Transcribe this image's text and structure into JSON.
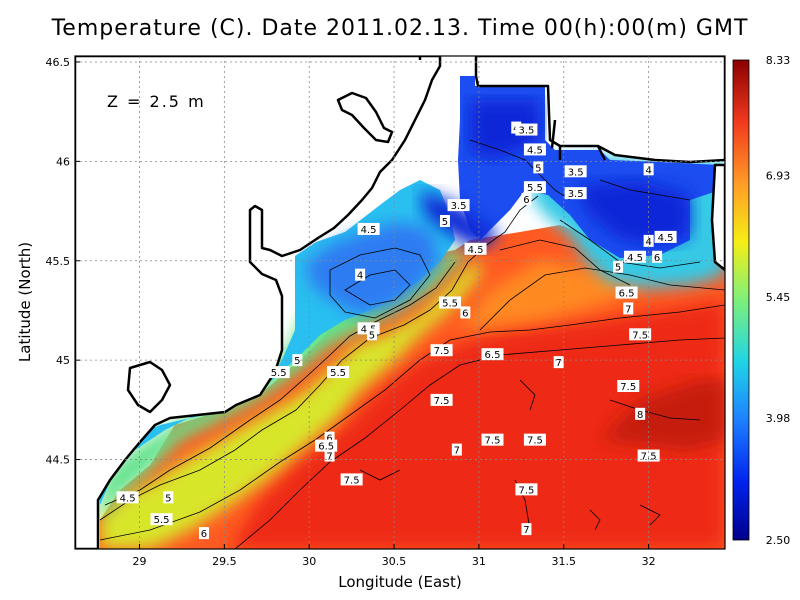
{
  "title": "Temperature (C). Date 2011.02.13. Time 00(h):00(m) GMT",
  "depth_label": "Z = 2.5 m",
  "x_axis": {
    "label": "Longitude (East)",
    "ticks": [
      "29",
      "29.5",
      "30",
      "30.5",
      "31",
      "31.5",
      "32"
    ]
  },
  "y_axis": {
    "label": "Latitude (North)",
    "ticks": [
      "46.5",
      "46",
      "45.5",
      "45",
      "44.5"
    ]
  },
  "colorbar": {
    "labels": [
      "8.33",
      "6.93",
      "5.45",
      "3.98",
      "2.50"
    ],
    "min": 2.5,
    "max": 8.33
  },
  "map_data": {
    "type": "heatmap",
    "lon_range": [
      28.62,
      32.45
    ],
    "lat_range": [
      44.05,
      46.53
    ],
    "contour_labels": [
      {
        "text": "4",
        "lon": 31.22,
        "lat": 46.17
      },
      {
        "text": "3.5",
        "lon": 31.28,
        "lat": 46.16
      },
      {
        "text": "4.5",
        "lon": 31.33,
        "lat": 46.06
      },
      {
        "text": "5",
        "lon": 31.35,
        "lat": 45.97
      },
      {
        "text": "3.5",
        "lon": 31.57,
        "lat": 45.95
      },
      {
        "text": "4",
        "lon": 32.0,
        "lat": 45.96
      },
      {
        "text": "5.5",
        "lon": 31.33,
        "lat": 45.87
      },
      {
        "text": "3.5",
        "lon": 31.57,
        "lat": 45.84
      },
      {
        "text": "6",
        "lon": 31.28,
        "lat": 45.81
      },
      {
        "text": "3.5",
        "lon": 30.88,
        "lat": 45.78
      },
      {
        "text": "5",
        "lon": 30.8,
        "lat": 45.7
      },
      {
        "text": "4.5",
        "lon": 30.35,
        "lat": 45.66
      },
      {
        "text": "4.5",
        "lon": 32.1,
        "lat": 45.62
      },
      {
        "text": "4",
        "lon": 32.0,
        "lat": 45.6
      },
      {
        "text": "4.5",
        "lon": 30.98,
        "lat": 45.56
      },
      {
        "text": "4.5",
        "lon": 31.92,
        "lat": 45.52
      },
      {
        "text": "6",
        "lon": 32.05,
        "lat": 45.52
      },
      {
        "text": "5",
        "lon": 31.82,
        "lat": 45.47
      },
      {
        "text": "4",
        "lon": 30.3,
        "lat": 45.43
      },
      {
        "text": "6.5",
        "lon": 31.87,
        "lat": 45.34
      },
      {
        "text": "5.5",
        "lon": 30.83,
        "lat": 45.29
      },
      {
        "text": "7",
        "lon": 31.88,
        "lat": 45.26
      },
      {
        "text": "6",
        "lon": 30.92,
        "lat": 45.24
      },
      {
        "text": "4.5",
        "lon": 30.35,
        "lat": 45.16
      },
      {
        "text": "5",
        "lon": 30.37,
        "lat": 45.13
      },
      {
        "text": "7.5",
        "lon": 31.95,
        "lat": 45.13
      },
      {
        "text": "7.5",
        "lon": 30.78,
        "lat": 45.05
      },
      {
        "text": "6.5",
        "lon": 31.08,
        "lat": 45.03
      },
      {
        "text": "5",
        "lon": 29.93,
        "lat": 45.0
      },
      {
        "text": "7",
        "lon": 31.47,
        "lat": 44.99
      },
      {
        "text": "5.5",
        "lon": 29.82,
        "lat": 44.94
      },
      {
        "text": "5.5",
        "lon": 30.17,
        "lat": 44.94
      },
      {
        "text": "7.5",
        "lon": 31.88,
        "lat": 44.87
      },
      {
        "text": "7.5",
        "lon": 30.78,
        "lat": 44.8
      },
      {
        "text": "8",
        "lon": 31.95,
        "lat": 44.73
      },
      {
        "text": "6",
        "lon": 30.12,
        "lat": 44.61
      },
      {
        "text": "6.5",
        "lon": 30.1,
        "lat": 44.57
      },
      {
        "text": "7",
        "lon": 30.12,
        "lat": 44.52
      },
      {
        "text": "7.5",
        "lon": 31.08,
        "lat": 44.6
      },
      {
        "text": "7.5",
        "lon": 31.33,
        "lat": 44.6
      },
      {
        "text": "7",
        "lon": 30.87,
        "lat": 44.55
      },
      {
        "text": "7.5",
        "lon": 32.0,
        "lat": 44.52
      },
      {
        "text": "7.5",
        "lon": 30.25,
        "lat": 44.4
      },
      {
        "text": "7.5",
        "lon": 31.28,
        "lat": 44.35
      },
      {
        "text": "4.5",
        "lon": 28.93,
        "lat": 44.31
      },
      {
        "text": "5",
        "lon": 29.17,
        "lat": 44.31
      },
      {
        "text": "5.5",
        "lon": 29.13,
        "lat": 44.2
      },
      {
        "text": "6",
        "lon": 29.38,
        "lat": 44.13
      },
      {
        "text": "7",
        "lon": 31.28,
        "lat": 44.15
      }
    ]
  }
}
